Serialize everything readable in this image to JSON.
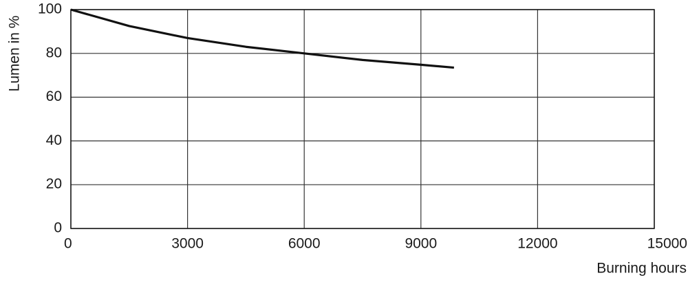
{
  "chart_data": {
    "type": "line",
    "x_label": "Burning hours",
    "y_label": "Lumen in %",
    "x": [
      0,
      1500,
      3000,
      4500,
      6000,
      7500,
      9000,
      9850
    ],
    "values": [
      100,
      92.5,
      87,
      83,
      80,
      77,
      74.8,
      73.5
    ],
    "color": "#111111",
    "xlim": [
      0,
      15000
    ],
    "xticks": [
      0,
      3000,
      6000,
      9000,
      12000,
      15000
    ],
    "ylim": [
      0,
      100
    ],
    "yticks": [
      0,
      20,
      40,
      60,
      80,
      100
    ],
    "grid": true
  }
}
